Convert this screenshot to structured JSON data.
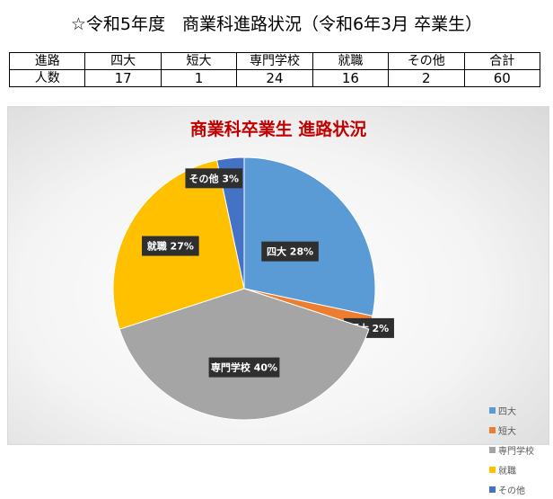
{
  "page_title": "☆令和5年度　商業科進路状況（令和6年3月 卒業生）",
  "table": {
    "header": [
      "進路",
      "四大",
      "短大",
      "専門学校",
      "就職",
      "その他",
      "合計"
    ],
    "row": [
      "人数",
      "17",
      "1",
      "24",
      "16",
      "2",
      "60"
    ]
  },
  "chart_data": {
    "type": "pie",
    "title": "商業科卒業生 進路状況",
    "categories": [
      "四大",
      "短大",
      "専門学校",
      "就職",
      "その他"
    ],
    "values": [
      17,
      1,
      24,
      16,
      2
    ],
    "percent_labels": [
      "28%",
      "2%",
      "40%",
      "27%",
      "3%"
    ],
    "colors": [
      "#5b9bd5",
      "#ed7d31",
      "#a5a5a5",
      "#ffc000",
      "#4472c4"
    ],
    "legend_position": "right"
  }
}
